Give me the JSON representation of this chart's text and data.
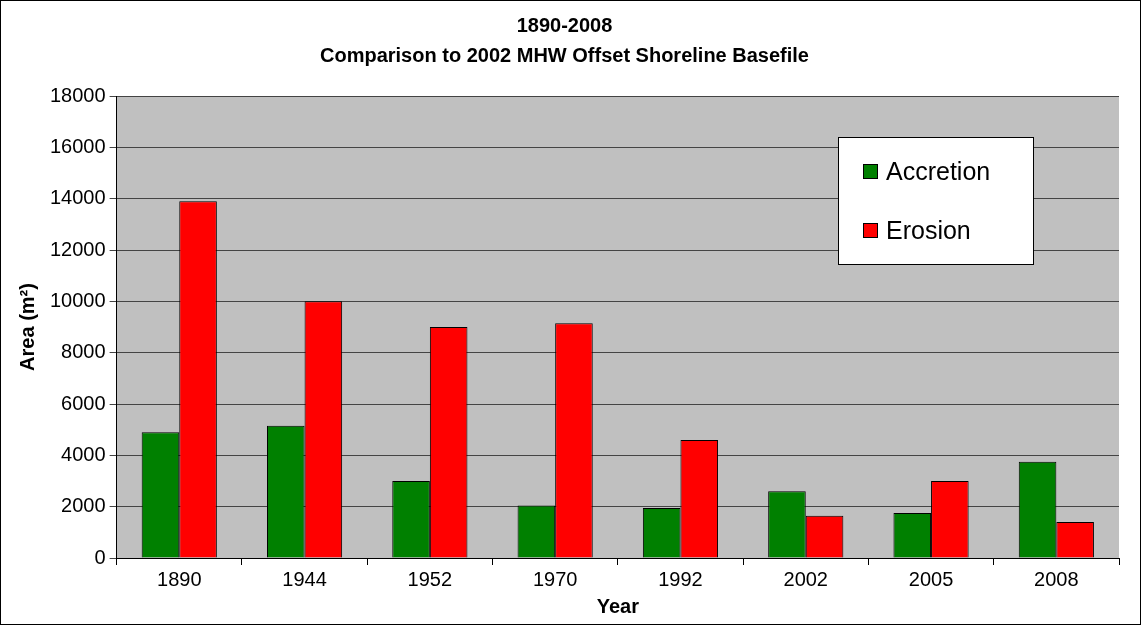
{
  "chart_data": {
    "type": "bar",
    "title": "1890-2008",
    "subtitle": "Comparison to 2002 MHW Offset Shoreline Basefile",
    "xlabel": "Year",
    "ylabel": "Area (m²)",
    "categories": [
      "1890",
      "1944",
      "1952",
      "1970",
      "1992",
      "2002",
      "2005",
      "2008"
    ],
    "series": [
      {
        "name": "Accretion",
        "color": "#008000",
        "values": [
          4900,
          5150,
          3000,
          2050,
          1950,
          2600,
          1750,
          3750
        ]
      },
      {
        "name": "Erosion",
        "color": "#ff0000",
        "values": [
          13900,
          10000,
          9000,
          9150,
          4600,
          1650,
          3000,
          1400
        ]
      }
    ],
    "ylim": [
      0,
      18000
    ],
    "yticks": [
      0,
      2000,
      4000,
      6000,
      8000,
      10000,
      12000,
      14000,
      16000,
      18000
    ],
    "grid": "y",
    "legend": "top right"
  }
}
